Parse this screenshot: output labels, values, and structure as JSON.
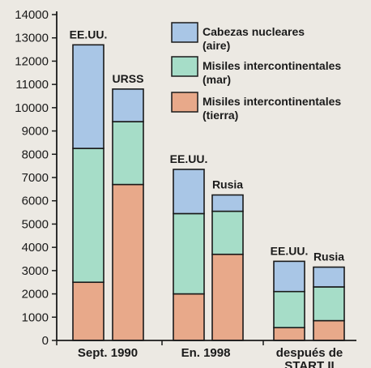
{
  "chart_data": {
    "type": "bar",
    "stacked": true,
    "ylim": [
      0,
      14000
    ],
    "yticks": [
      0,
      1000,
      2000,
      3000,
      4000,
      5000,
      6000,
      7000,
      8000,
      9000,
      10000,
      11000,
      12000,
      13000,
      14000
    ],
    "grid": false,
    "legend_position": "top-right",
    "groups": [
      {
        "label": "Sept. 1990",
        "bars": [
          "EE.UU.",
          "URSS"
        ]
      },
      {
        "label": "En.  1998",
        "bars": [
          "EE.UU.",
          "Rusia"
        ]
      },
      {
        "label": "después de START II",
        "bars": [
          "EE.UU.",
          "Rusia"
        ]
      }
    ],
    "bars": [
      "EE.UU.",
      "URSS",
      "EE.UU.",
      "Rusia",
      "EE.UU.",
      "Rusia"
    ],
    "series": [
      {
        "name": "Misiles intercontinentales (tierra)",
        "color": "#e8a98a",
        "values": [
          2500,
          6700,
          2000,
          3700,
          550,
          850
        ]
      },
      {
        "name": "Misiles intercontinentales (mar)",
        "color": "#a6ddc8",
        "values": [
          5750,
          2700,
          3450,
          1850,
          1550,
          1450
        ]
      },
      {
        "name": "Cabezas nucleares (aire)",
        "color": "#a9c6e6",
        "values": [
          4450,
          1400,
          1900,
          700,
          1300,
          850
        ]
      }
    ],
    "legend": [
      {
        "line1": "Cabezas nucleares",
        "line2": "(aire)",
        "color": "#a9c6e6"
      },
      {
        "line1": "Misiles intercontinentales",
        "line2": "(mar)",
        "color": "#a6ddc8"
      },
      {
        "line1": "Misiles intercontinentales",
        "line2": "(tierra)",
        "color": "#e8a98a"
      }
    ]
  }
}
